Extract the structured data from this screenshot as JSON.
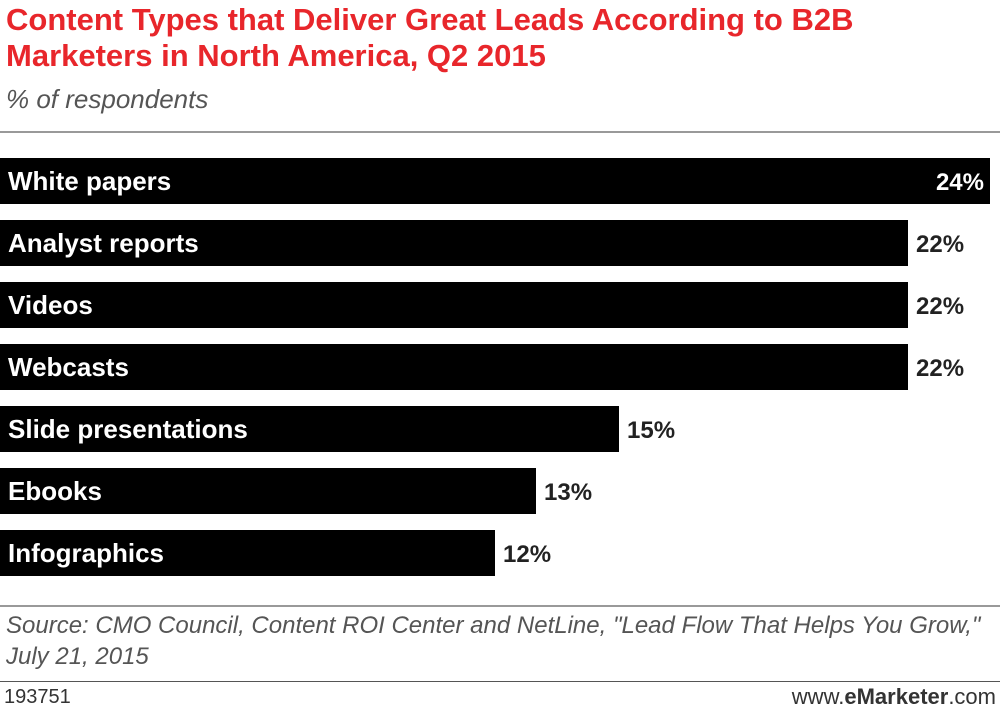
{
  "chart_data": {
    "type": "bar",
    "orientation": "horizontal",
    "title": "Content Types that Deliver Great Leads According to B2B Marketers in North America, Q2 2015",
    "subtitle": "% of respondents",
    "categories": [
      "White papers",
      "Analyst reports",
      "Videos",
      "Webcasts",
      "Slide presentations",
      "Ebooks",
      "Infographics"
    ],
    "values": [
      24,
      22,
      22,
      22,
      15,
      13,
      12
    ],
    "value_labels": [
      "24%",
      "22%",
      "22%",
      "22%",
      "15%",
      "13%",
      "12%"
    ],
    "xlim": [
      0,
      24
    ],
    "grid": false,
    "bar_color": "#000000"
  },
  "footer": {
    "source": "Source: CMO Council, Content ROI Center and NetLine, \"Lead Flow That Helps You Grow,\" July 21, 2015",
    "chart_id": "193751",
    "brand_prefix": "www.",
    "brand_name": "eMarketer",
    "brand_suffix": ".com"
  },
  "colors": {
    "title": "#e8262b",
    "text": "#555555",
    "bar": "#000000"
  }
}
